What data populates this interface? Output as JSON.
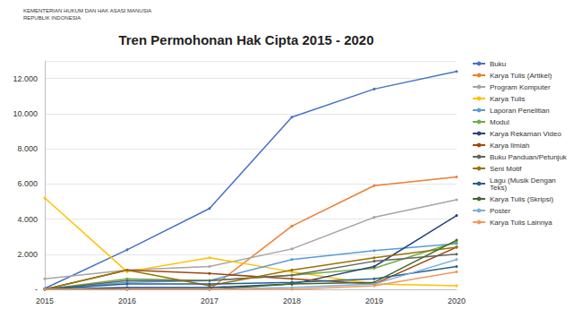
{
  "header": {
    "lines": [
      "KEMENTERIAN HUKUM DAN HAK ASASI MANUSIA",
      "REPUBLIK INDONESIA"
    ]
  },
  "chart_data": {
    "type": "line",
    "title": "Tren Permohonan Hak Cipta 2015 - 2020",
    "categories": [
      "2015",
      "2016",
      "2017",
      "2018",
      "2019",
      "2020"
    ],
    "series": [
      {
        "name": "Buku",
        "color": "#4472c4",
        "values": [
          50,
          2250,
          4600,
          9800,
          11400,
          12400
        ]
      },
      {
        "name": "Karya Tulis (Artikel)",
        "color": "#ed7d31",
        "values": [
          0,
          0,
          0,
          3600,
          5900,
          6400
        ]
      },
      {
        "name": "Program Komputer",
        "color": "#a5a5a5",
        "values": [
          600,
          1100,
          1300,
          2300,
          4100,
          5100
        ]
      },
      {
        "name": "Karya Tulis",
        "color": "#ffc000",
        "values": [
          5200,
          1000,
          1800,
          1000,
          300,
          200
        ]
      },
      {
        "name": "Laporan Penelitian",
        "color": "#5b9bd5",
        "values": [
          0,
          400,
          500,
          1700,
          2200,
          2600
        ]
      },
      {
        "name": "Modul",
        "color": "#70ad47",
        "values": [
          0,
          600,
          500,
          800,
          1200,
          2700
        ]
      },
      {
        "name": "Karya Rekaman Video",
        "color": "#264478",
        "values": [
          0,
          100,
          100,
          300,
          1300,
          4200
        ]
      },
      {
        "name": "Karya Ilmiah",
        "color": "#9e480e",
        "values": [
          0,
          1100,
          900,
          600,
          300,
          2400
        ]
      },
      {
        "name": "Buku Panduan/Petunjuk",
        "color": "#636363",
        "values": [
          0,
          500,
          500,
          800,
          1600,
          2000
        ]
      },
      {
        "name": "Seni Motif",
        "color": "#997300",
        "values": [
          0,
          1100,
          200,
          1100,
          1800,
          2400
        ]
      },
      {
        "name": "Lagu (Musik Dengan Teks)",
        "color": "#255e91",
        "values": [
          0,
          300,
          300,
          400,
          600,
          1300
        ]
      },
      {
        "name": "Karya Tulis (Skripsi)",
        "color": "#43682b",
        "values": [
          0,
          0,
          0,
          300,
          400,
          2800
        ]
      },
      {
        "name": "Poster",
        "color": "#7cafdd",
        "values": [
          0,
          0,
          0,
          100,
          300,
          1700
        ]
      },
      {
        "name": "Karya Tulis Lainnya",
        "color": "#f1975a",
        "values": [
          0,
          0,
          0,
          0,
          200,
          1000
        ]
      }
    ],
    "ylim": [
      0,
      13000
    ],
    "yticks": [
      {
        "value": 0,
        "label": "-"
      },
      {
        "value": 2000,
        "label": "2.000"
      },
      {
        "value": 4000,
        "label": "4.000"
      },
      {
        "value": 6000,
        "label": "6.000"
      },
      {
        "value": 8000,
        "label": "8.000"
      },
      {
        "value": 10000,
        "label": "10.000"
      },
      {
        "value": 12000,
        "label": "12.000"
      }
    ],
    "grid": true,
    "legend": "right",
    "marker": "circle"
  }
}
